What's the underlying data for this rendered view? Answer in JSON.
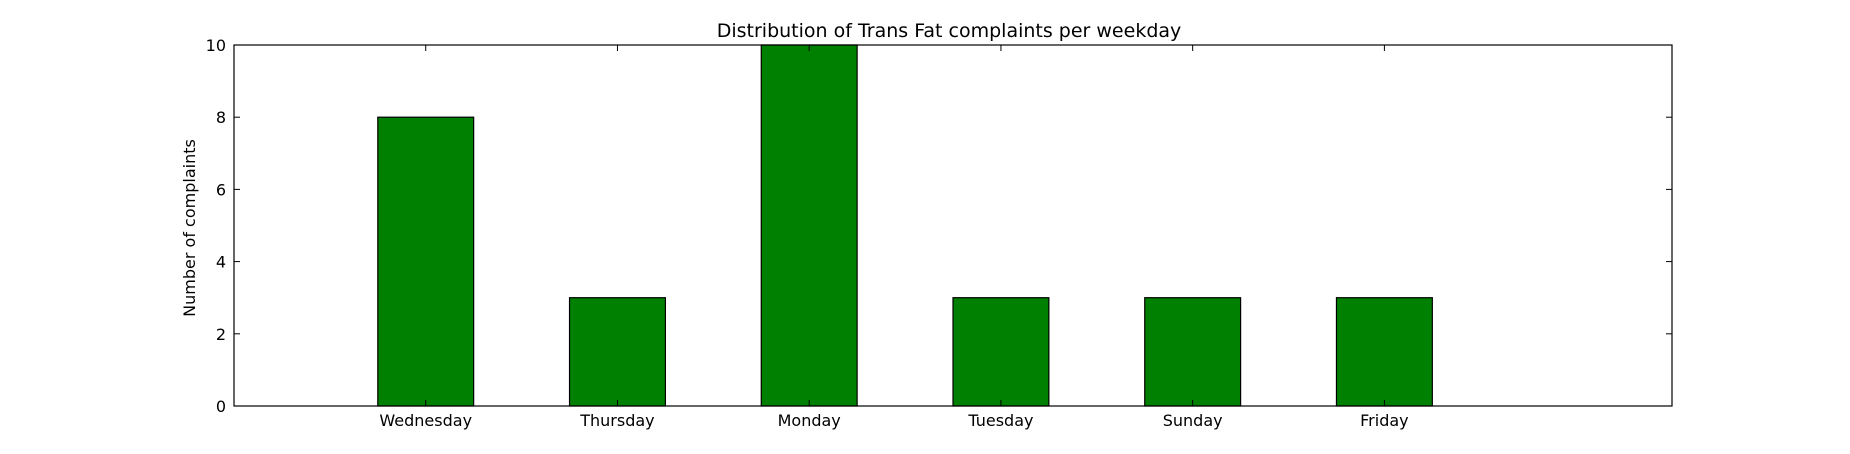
{
  "chart_data": {
    "type": "bar",
    "title": "Distribution of  Trans Fat complaints per weekday",
    "xlabel": "",
    "ylabel": "Number of complaints",
    "categories": [
      "Wednesday",
      "Thursday",
      "Monday",
      "Tuesday",
      "Sunday",
      "Friday"
    ],
    "values": [
      8,
      3,
      10,
      3,
      3,
      3
    ],
    "ylim": [
      0,
      10
    ],
    "yticks": [
      0,
      2,
      4,
      6,
      8,
      10
    ],
    "grid": false,
    "legend": "none",
    "colors": {
      "bar": "#008000",
      "bar_edge": "#000000",
      "axes": "#000000",
      "background": "#ffffff"
    }
  }
}
